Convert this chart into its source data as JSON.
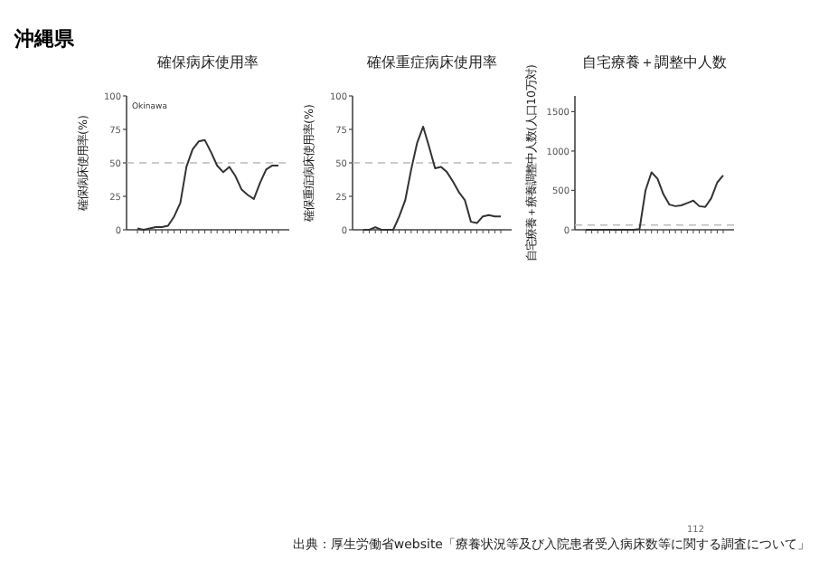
{
  "chart_data": [
    {
      "type": "line",
      "title": "確保病床使用率",
      "ylabel": "確保病床使用率(%)",
      "categories": [
        null,
        null,
        null,
        null,
        null,
        null,
        null,
        null,
        null,
        null,
        null,
        null,
        null,
        null,
        null,
        null,
        null,
        null,
        null,
        null,
        null,
        null,
        null,
        null
      ],
      "series": [
        {
          "color": "#333333",
          "values": [
            1,
            0,
            1,
            2,
            2,
            3,
            10,
            20,
            47,
            60,
            66,
            67,
            58,
            48,
            43,
            47,
            40,
            30,
            26,
            23,
            35,
            45,
            48,
            48
          ]
        }
      ],
      "ylim": [
        0,
        100
      ],
      "yticks": [
        0,
        25,
        50,
        75,
        100
      ],
      "ref_lines": [
        {
          "axis": "y",
          "value": 50,
          "color": "#bbbbbb",
          "line_style": "dashed"
        }
      ],
      "annotations": [
        "沖縄県",
        "Okinawa"
      ],
      "grid": false
    },
    {
      "type": "line",
      "title": "確保重症病床使用率",
      "ylabel": "確保重症病床使用率(%)",
      "categories": [
        null,
        null,
        null,
        null,
        null,
        null,
        null,
        null,
        null,
        null,
        null,
        null,
        null,
        null,
        null,
        null,
        null,
        null,
        null,
        null,
        null,
        null,
        null,
        null
      ],
      "series": [
        {
          "color": "#333333",
          "values": [
            0,
            0,
            2,
            0,
            0,
            0,
            10,
            22,
            45,
            65,
            77,
            62,
            46,
            47,
            43,
            36,
            28,
            22,
            6,
            5,
            10,
            11,
            10,
            10
          ]
        }
      ],
      "ylim": [
        0,
        100
      ],
      "yticks": [
        0,
        25,
        50,
        75,
        100
      ],
      "ref_lines": [
        {
          "axis": "y",
          "value": 50,
          "color": "#bbbbbb",
          "line_style": "dashed"
        }
      ],
      "grid": false
    },
    {
      "type": "line",
      "title": "自宅療養＋調整中人数",
      "ylabel": "自宅療養＋療養調整中人数(人口10万対)",
      "categories": [
        null,
        null,
        null,
        null,
        null,
        null,
        null,
        null,
        null,
        null,
        null,
        null,
        null,
        null,
        null,
        null,
        null,
        null,
        null,
        null,
        null,
        null,
        null,
        null
      ],
      "series": [
        {
          "color": "#333333",
          "values": [
            0,
            0,
            0,
            0,
            0,
            0,
            0,
            0,
            0,
            10,
            500,
            730,
            650,
            450,
            320,
            300,
            310,
            340,
            370,
            300,
            290,
            400,
            600,
            690
          ]
        }
      ],
      "ylim": [
        0,
        1700
      ],
      "yticks": [
        0,
        500,
        1000,
        1500
      ],
      "ref_lines": [
        {
          "axis": "y",
          "value": 60,
          "color": "#bbbbbb",
          "line_style": "dashed"
        }
      ],
      "annotations": [
        "112",
        "出典：厚生労働省website「療養状況等及び入院患者受入病床数等に関する調査について」"
      ],
      "grid": false
    }
  ]
}
